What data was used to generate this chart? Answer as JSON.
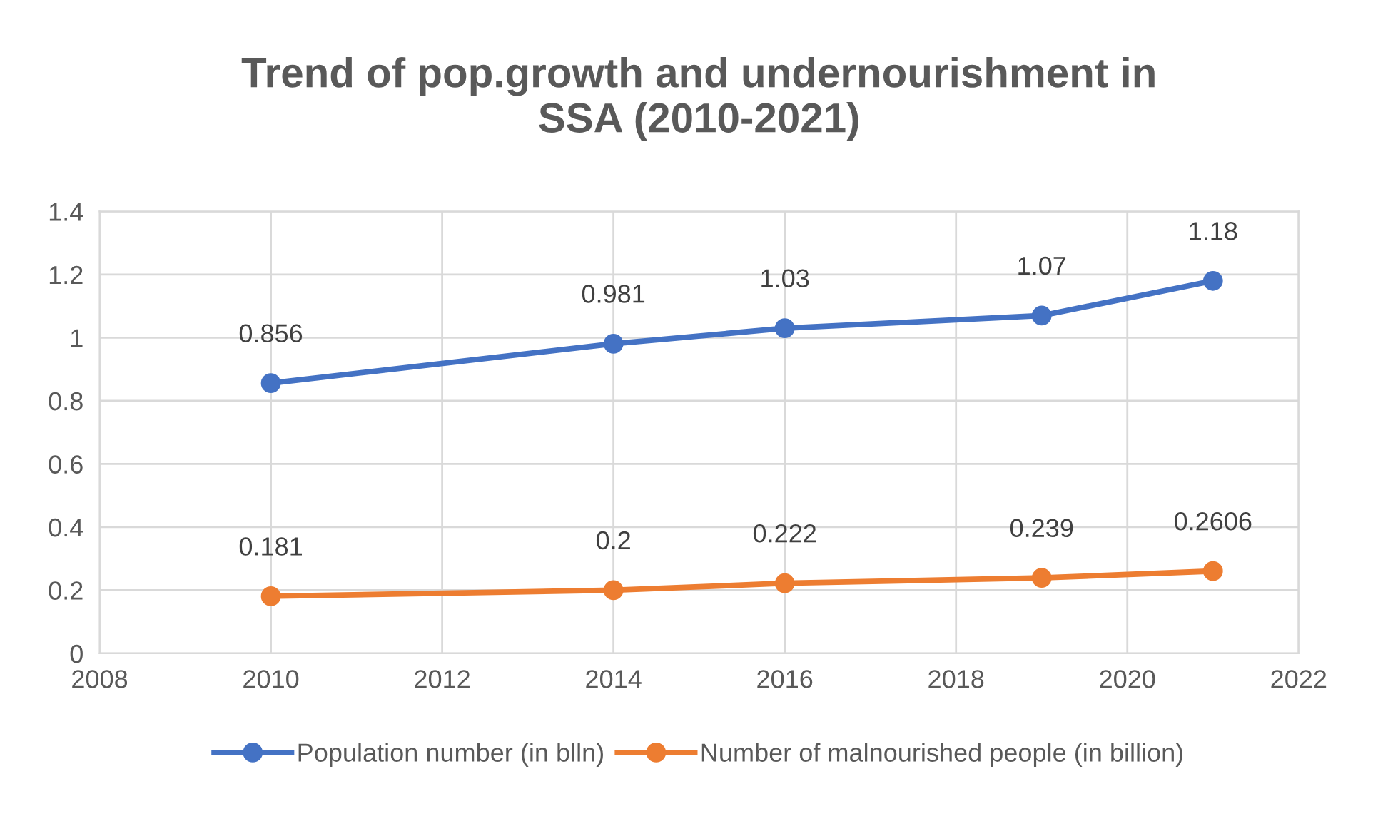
{
  "chart_data": {
    "type": "line",
    "title": "Trend of pop.growth and undernourishment in\nSSA (2010-2021)",
    "x": [
      2010,
      2014,
      2016,
      2019,
      2021
    ],
    "series": [
      {
        "name": "Population number (in blln)",
        "color": "#4472c4",
        "values": [
          0.856,
          0.981,
          1.03,
          1.07,
          1.18
        ]
      },
      {
        "name": "Number of malnourished people (in billion)",
        "color": "#ed7d31",
        "values": [
          0.181,
          0.2,
          0.222,
          0.239,
          0.2606
        ]
      }
    ],
    "xlim": [
      2008,
      2022
    ],
    "xticks": [
      2008,
      2010,
      2012,
      2014,
      2016,
      2018,
      2020,
      2022
    ],
    "ylim": [
      0,
      1.4
    ],
    "yticks": [
      0,
      0.2,
      0.4,
      0.6,
      0.8,
      1,
      1.2,
      1.4
    ],
    "grid": true,
    "legend": "bottom",
    "marker": "circle",
    "line_style": "solid",
    "data_labels": true
  }
}
